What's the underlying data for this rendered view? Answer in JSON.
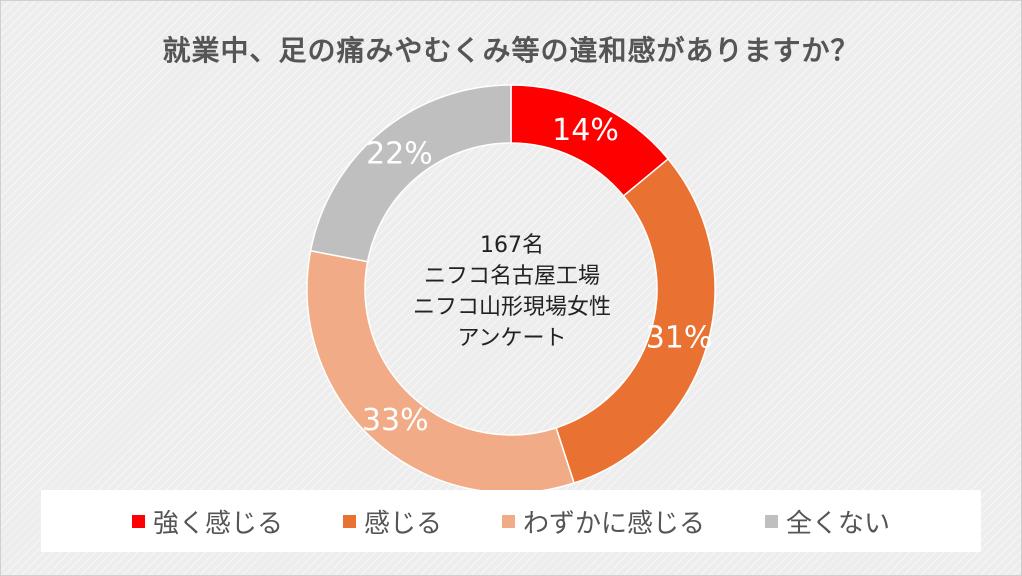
{
  "chart_data": {
    "type": "pie",
    "variant": "donut",
    "title": "就業中、足の痛みやむくみ等の違和感がありますか？",
    "center_label": [
      "167名",
      "ニフコ名古屋工場",
      "ニフコ山形現場女性",
      "アンケート"
    ],
    "legend_position": "bottom",
    "series": [
      {
        "name": "強く感じる",
        "value": 14,
        "label": "14%",
        "color": "#ff0000"
      },
      {
        "name": "感じる",
        "value": 31,
        "label": "31%",
        "color": "#e97132"
      },
      {
        "name": "わずかに感じる",
        "value": 33,
        "label": "33%",
        "color": "#f1ab86"
      },
      {
        "name": "全くない",
        "value": 22,
        "label": "22%",
        "color": "#bfbfbf"
      }
    ]
  }
}
